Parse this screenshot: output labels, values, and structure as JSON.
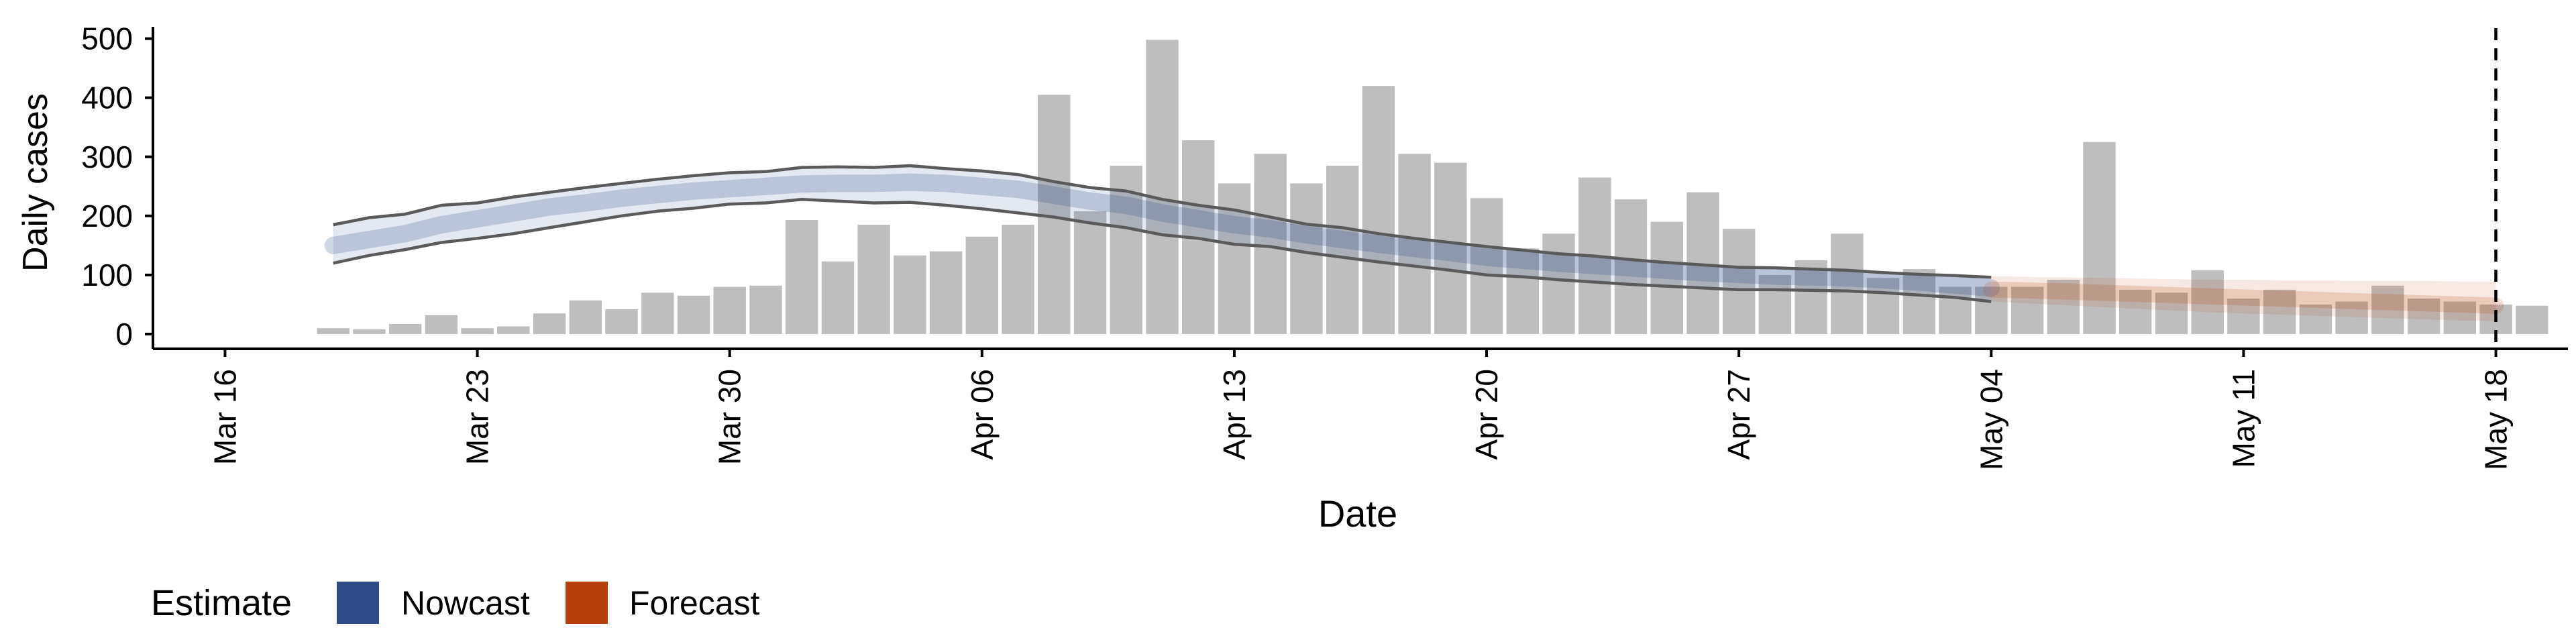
{
  "chart_data": {
    "type": "bar",
    "xlabel": "Date",
    "ylabel": "Daily cases",
    "x_domain": [
      "2020-03-14",
      "2020-05-20"
    ],
    "ylim": [
      -25,
      520
    ],
    "x_ticks": [
      {
        "date": "2020-03-16",
        "label": "Mar 16"
      },
      {
        "date": "2020-03-23",
        "label": "Mar 23"
      },
      {
        "date": "2020-03-30",
        "label": "Mar 30"
      },
      {
        "date": "2020-04-06",
        "label": "Apr 06"
      },
      {
        "date": "2020-04-13",
        "label": "Apr 13"
      },
      {
        "date": "2020-04-20",
        "label": "Apr 20"
      },
      {
        "date": "2020-04-27",
        "label": "Apr 27"
      },
      {
        "date": "2020-05-04",
        "label": "May 04"
      },
      {
        "date": "2020-05-11",
        "label": "May 11"
      },
      {
        "date": "2020-05-18",
        "label": "May 18"
      }
    ],
    "y_ticks": [
      0,
      100,
      200,
      300,
      400,
      500
    ],
    "grid": false,
    "vline_date": "2020-05-18",
    "bars": {
      "start_date": "2020-03-19",
      "values": [
        10,
        8,
        17,
        32,
        10,
        13,
        35,
        57,
        42,
        70,
        65,
        80,
        82,
        193,
        123,
        185,
        133,
        140,
        165,
        185,
        405,
        208,
        285,
        498,
        328,
        255,
        305,
        255,
        285,
        420,
        305,
        290,
        230,
        145,
        170,
        265,
        228,
        190,
        240,
        178,
        100,
        125,
        170,
        95,
        110,
        80,
        80,
        80,
        92,
        325,
        75,
        70,
        108,
        60,
        75,
        50,
        55,
        82,
        60,
        55,
        50,
        48
      ],
      "color": "#bebebe"
    },
    "nowcast": {
      "name": "Nowcast",
      "start_date": "2020-03-19",
      "median": [
        150,
        160,
        170,
        185,
        195,
        205,
        215,
        222,
        230,
        236,
        242,
        246,
        250,
        254,
        255,
        255,
        257,
        255,
        250,
        245,
        235,
        225,
        218,
        205,
        195,
        185,
        178,
        168,
        160,
        152,
        145,
        138,
        130,
        125,
        120,
        116,
        112,
        108,
        104,
        101,
        98,
        97,
        95,
        92,
        88,
        83,
        78
      ],
      "upper": [
        185,
        197,
        203,
        218,
        222,
        232,
        240,
        248,
        255,
        262,
        268,
        273,
        275,
        282,
        283,
        282,
        285,
        280,
        276,
        270,
        258,
        248,
        242,
        228,
        218,
        210,
        198,
        186,
        180,
        170,
        162,
        155,
        148,
        142,
        136,
        132,
        126,
        121,
        117,
        113,
        112,
        110,
        108,
        104,
        101,
        99,
        96
      ],
      "lower": [
        120,
        133,
        143,
        155,
        162,
        170,
        180,
        190,
        200,
        208,
        213,
        220,
        222,
        228,
        225,
        222,
        223,
        218,
        212,
        205,
        198,
        188,
        180,
        168,
        162,
        152,
        148,
        138,
        130,
        122,
        115,
        108,
        100,
        97,
        92,
        88,
        84,
        81,
        78,
        75,
        75,
        74,
        73,
        70,
        66,
        62,
        55
      ],
      "color": "#2b4a8a"
    },
    "forecast": {
      "name": "Forecast",
      "start_date": "2020-05-04",
      "median": [
        75,
        74,
        72,
        70,
        68,
        66,
        64,
        62,
        60,
        58,
        56,
        54,
        52,
        50,
        48
      ],
      "upper": [
        98,
        97,
        96,
        95,
        94,
        93,
        92,
        92,
        91,
        91,
        90,
        90,
        90,
        89,
        89
      ],
      "lower": [
        55,
        52,
        49,
        46,
        43,
        40,
        37,
        35,
        33,
        31,
        29,
        27,
        25,
        23,
        22
      ],
      "color": "#b5400d"
    },
    "legend": {
      "title": "Estimate",
      "placement": "bottom-left",
      "items": [
        {
          "label": "Nowcast",
          "color": "#2e4a87"
        },
        {
          "label": "Forecast",
          "color": "#b5400d"
        }
      ]
    }
  }
}
